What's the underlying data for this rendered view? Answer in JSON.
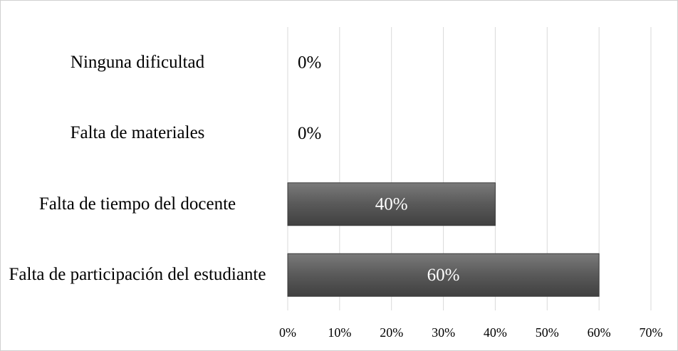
{
  "chart_data": {
    "type": "bar",
    "orientation": "horizontal",
    "categories": [
      "Ninguna dificultad",
      "Falta de materiales",
      "Falta de tiempo del docente",
      "Falta de participación del estudiante"
    ],
    "values": [
      0,
      0,
      40,
      60
    ],
    "value_labels": [
      "0%",
      "0%",
      "40%",
      "60%"
    ],
    "color": "#595959",
    "xlim": [
      0,
      70
    ],
    "xticks": [
      {
        "value": 0,
        "label": "0%"
      },
      {
        "value": 10,
        "label": "10%"
      },
      {
        "value": 20,
        "label": "20%"
      },
      {
        "value": 30,
        "label": "30%"
      },
      {
        "value": 40,
        "label": "40%"
      },
      {
        "value": 50,
        "label": "50%"
      },
      {
        "value": 60,
        "label": "60%"
      },
      {
        "value": 70,
        "label": "70%"
      }
    ],
    "grid": true
  }
}
